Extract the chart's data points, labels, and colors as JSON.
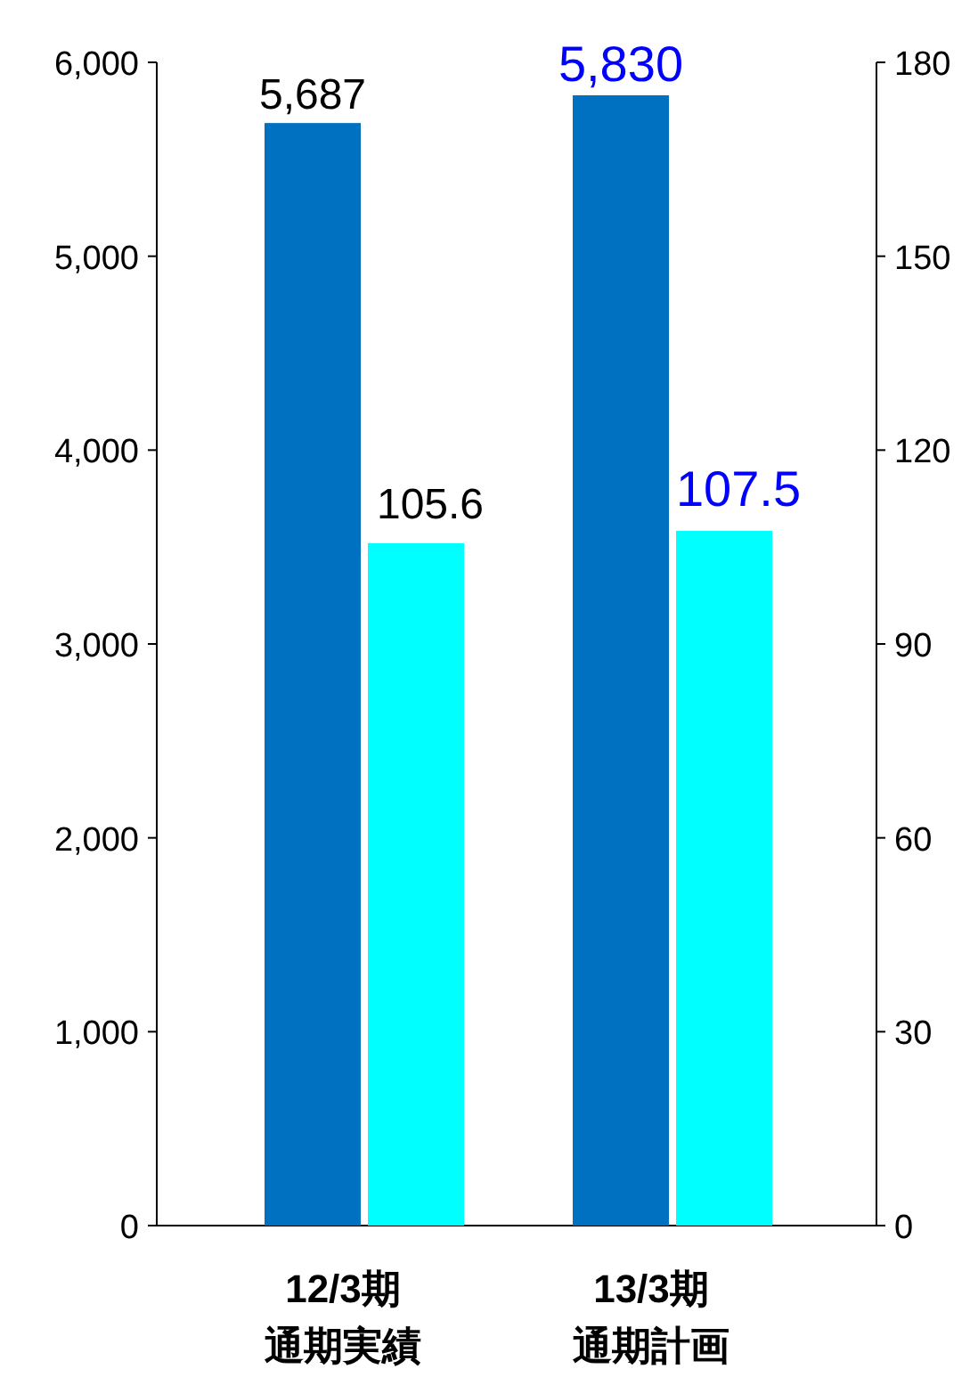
{
  "chart_data": {
    "type": "bar",
    "categories": [
      "12/3期通期実績",
      "13/3期通期計画"
    ],
    "series": [
      {
        "color": "#0070c0",
        "values": [
          5687,
          5830
        ]
      },
      {
        "color": "#00ffff",
        "values": [
          105.6,
          107.5
        ],
        "axis": "y2"
      }
    ],
    "ylim": [
      0,
      6000
    ],
    "yticks": [
      {
        "value": 0,
        "label": "0"
      },
      {
        "value": 1000,
        "label": "1,000"
      },
      {
        "value": 2000,
        "label": "2,000"
      },
      {
        "value": 3000,
        "label": "3,000"
      },
      {
        "value": 4000,
        "label": "4,000"
      },
      {
        "value": 5000,
        "label": "5,000"
      },
      {
        "value": 6000,
        "label": "6,000"
      }
    ],
    "y2lim": [
      0,
      180
    ],
    "y2ticks": [
      0,
      30,
      60,
      90,
      120,
      150,
      180
    ],
    "value_labels": [
      [
        "5,687",
        "5,830"
      ],
      [
        "105.6",
        "107.5"
      ]
    ],
    "grid": false
  }
}
